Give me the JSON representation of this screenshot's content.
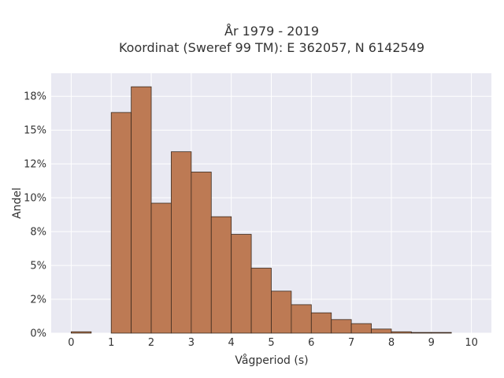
{
  "chart_data": {
    "type": "bar",
    "title_line1": "År 1979 - 2019",
    "title_line2": "Koordinat (Sweref 99 TM): E 362057, N 6142549",
    "xlabel": "Vågperiod (s)",
    "ylabel": "Andel",
    "bin_width": 0.5,
    "x_bins_start": [
      0,
      0.5,
      1,
      1.5,
      2,
      2.5,
      3,
      3.5,
      4,
      4.5,
      5,
      5.5,
      6,
      6.5,
      7,
      7.5,
      8,
      8.5,
      9,
      9.5
    ],
    "values": [
      0.1,
      0,
      16.3,
      18.2,
      9.6,
      13.4,
      11.9,
      8.6,
      7.3,
      4.8,
      3.1,
      2.1,
      1.5,
      1.0,
      0.7,
      0.3,
      0.1,
      0.05,
      0.05,
      0
    ],
    "xlim": [
      -0.5,
      10.5
    ],
    "ylim": [
      0,
      19.2
    ],
    "x_ticks": [
      0,
      1,
      2,
      3,
      4,
      5,
      6,
      7,
      8,
      9,
      10
    ],
    "y_ticks": [
      0,
      2.5,
      5,
      7.5,
      10,
      12.5,
      15,
      17.5
    ],
    "y_tick_labels": [
      "0%",
      "2%",
      "5%",
      "8%",
      "10%",
      "12%",
      "15%",
      "18%"
    ],
    "grid": true,
    "colors": {
      "bar_fill": "#bd7a54",
      "bar_stroke": "#3a2a1e",
      "plot_bg": "#e9e9f2",
      "grid": "#ffffff"
    }
  }
}
